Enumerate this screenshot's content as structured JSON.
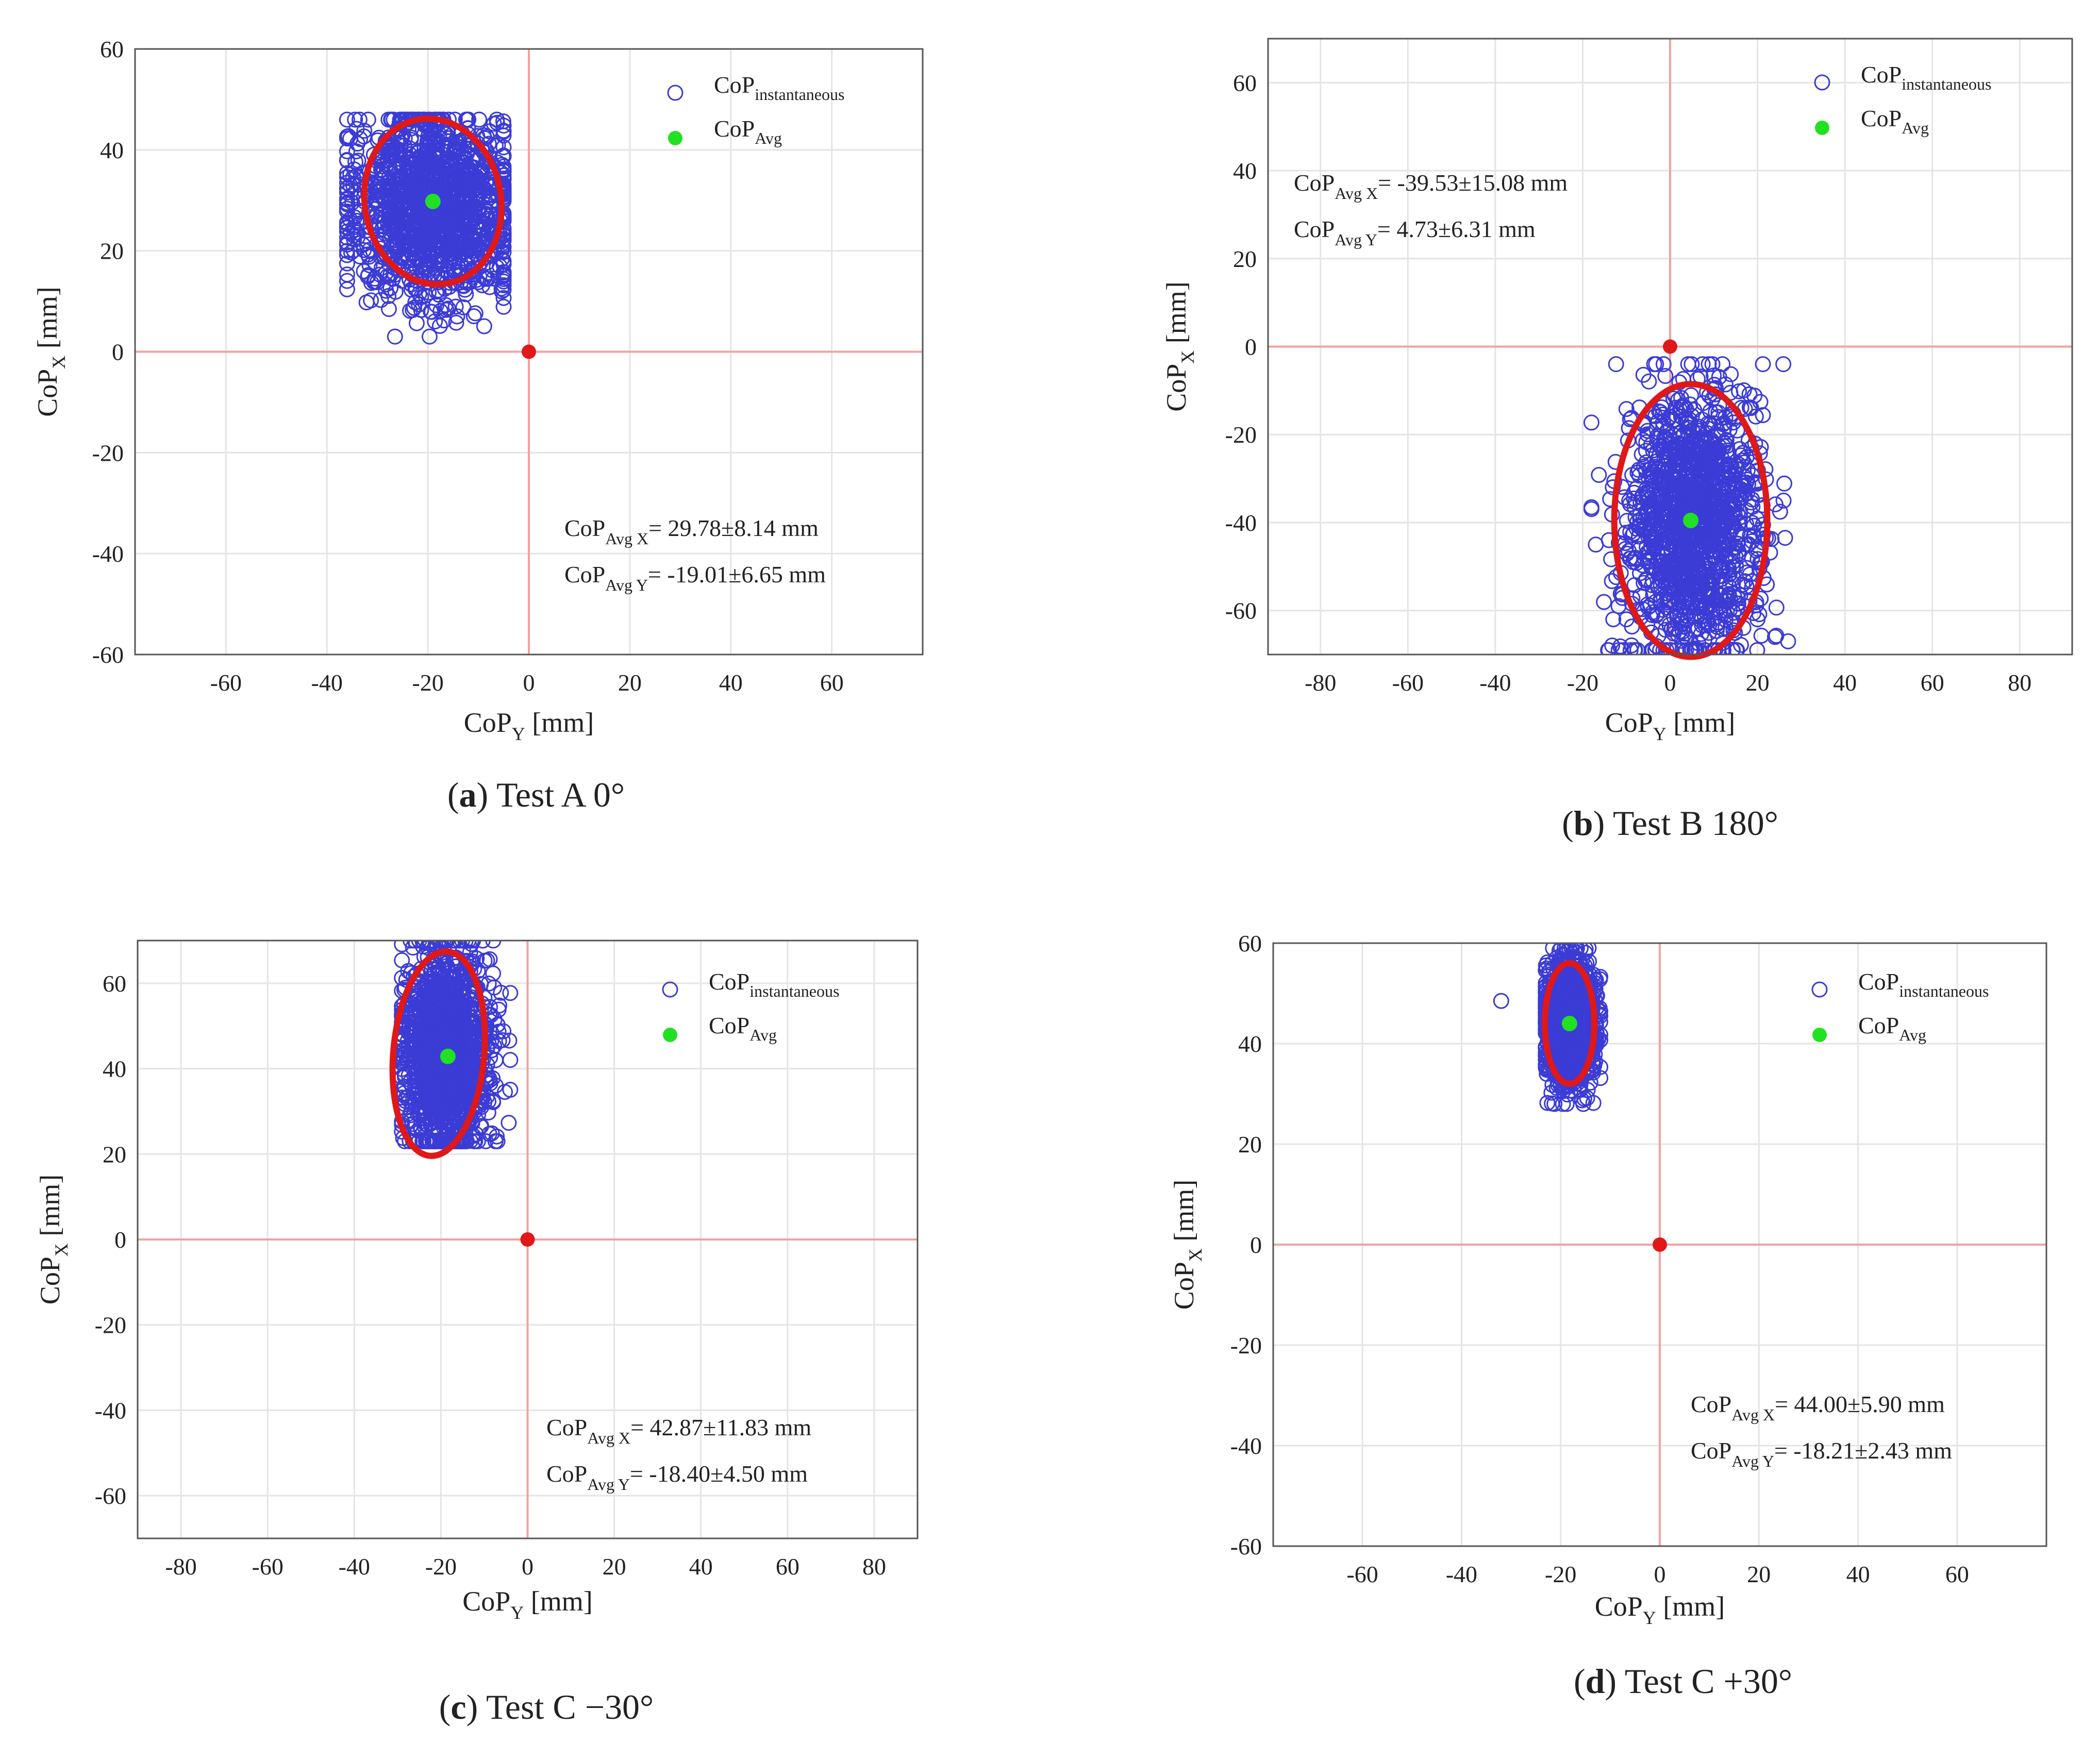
{
  "chart_data": [
    {
      "type": "scatter",
      "panel": "a",
      "caption_letter": "a",
      "caption_text": "Test A 0°",
      "xlabel_main": "CoP",
      "xlabel_sub": "Y",
      "xlabel_unit": " [mm]",
      "ylabel_main": "CoP",
      "ylabel_sub": "X",
      "ylabel_unit": " [mm]",
      "xlim": [
        -78,
        78
      ],
      "ylim": [
        -60,
        60
      ],
      "xticks": [
        -60,
        -40,
        -20,
        0,
        20,
        40,
        60
      ],
      "yticks": [
        -60,
        -40,
        -20,
        0,
        20,
        40,
        60
      ],
      "grid": true,
      "legend": {
        "placement": "top-right",
        "inst_main": "CoP",
        "inst_sub": "instantaneous",
        "avg_main": "CoP",
        "avg_sub": "Avg"
      },
      "stats_placement": "bottom-right",
      "stats": [
        {
          "main": "CoP",
          "sub": "Avg X",
          "value": "= 29.78±8.14 mm"
        },
        {
          "main": "CoP",
          "sub": "Avg Y",
          "value": "= -19.01±6.65 mm"
        }
      ],
      "avg_point": {
        "x": -19.01,
        "y": 29.78
      },
      "origin_point": {
        "x": 0,
        "y": 0
      },
      "ellipse": {
        "cx": -19.01,
        "cy": 29.78,
        "rx": 13.5,
        "ry": 16.5,
        "angle": -10
      },
      "cloud": {
        "x_center": -19,
        "x_spread": 8.5,
        "y_center": 29,
        "y_spread": 9,
        "x_min": -36,
        "x_max": -5,
        "y_min": 3,
        "y_max": 46
      },
      "outliers": [
        {
          "x": -7,
          "y": 14.5
        }
      ],
      "colors": {
        "instantaneous": "#3b3bd6",
        "avg": "#22e022",
        "ellipse": "#e01818",
        "origin": "#e01818",
        "crosshair": "#f4a0a0",
        "grid": "#e4e4e4"
      }
    },
    {
      "type": "scatter",
      "panel": "b",
      "caption_letter": "b",
      "caption_text": "Test B 180°",
      "xlabel_main": "CoP",
      "xlabel_sub": "Y",
      "xlabel_unit": " [mm]",
      "ylabel_main": "CoP",
      "ylabel_sub": "X",
      "ylabel_unit": " [mm]",
      "xlim": [
        -92,
        92
      ],
      "ylim": [
        -70,
        70
      ],
      "xticks": [
        -80,
        -60,
        -40,
        -20,
        0,
        20,
        40,
        60,
        80
      ],
      "yticks": [
        -60,
        -40,
        -20,
        0,
        20,
        40,
        60
      ],
      "grid": true,
      "legend": {
        "placement": "top-right",
        "inst_main": "CoP",
        "inst_sub": "instantaneous",
        "avg_main": "CoP",
        "avg_sub": "Avg"
      },
      "stats_placement": "top-left",
      "stats": [
        {
          "main": "CoP",
          "sub": "Avg X",
          "value": "= -39.53±15.08 mm"
        },
        {
          "main": "CoP",
          "sub": "Avg Y",
          "value": "= 4.73±6.31 mm"
        }
      ],
      "avg_point": {
        "x": 4.73,
        "y": -39.53
      },
      "origin_point": {
        "x": 0,
        "y": 0
      },
      "ellipse": {
        "cx": 4.73,
        "cy": -39.53,
        "rx": 17.5,
        "ry": 31,
        "angle": 0
      },
      "cloud": {
        "x_center": 5,
        "x_spread": 7.5,
        "y_center": -40,
        "y_spread": 15,
        "x_min": -18,
        "x_max": 27,
        "y_min": -69,
        "y_max": -4
      },
      "outliers": [
        {
          "x": -17,
          "y": -45
        },
        {
          "x": -14,
          "y": -44
        },
        {
          "x": 20,
          "y": -62
        },
        {
          "x": 24,
          "y": -66
        },
        {
          "x": 27,
          "y": -67
        },
        {
          "x": -13,
          "y": -62
        },
        {
          "x": -10,
          "y": -62
        }
      ],
      "colors": {
        "instantaneous": "#3b3bd6",
        "avg": "#22e022",
        "ellipse": "#e01818",
        "origin": "#e01818",
        "crosshair": "#f4a0a0",
        "grid": "#e4e4e4"
      }
    },
    {
      "type": "scatter",
      "panel": "c",
      "caption_letter": "c",
      "caption_text": "Test C −30°",
      "xlabel_main": "CoP",
      "xlabel_sub": "Y",
      "xlabel_unit": " [mm]",
      "ylabel_main": "CoP",
      "ylabel_sub": "X",
      "ylabel_unit": " [mm]",
      "xlim": [
        -90,
        90
      ],
      "ylim": [
        -70,
        70
      ],
      "xticks": [
        -80,
        -60,
        -40,
        -20,
        0,
        20,
        40,
        60,
        80
      ],
      "yticks": [
        -60,
        -40,
        -20,
        0,
        20,
        40,
        60
      ],
      "grid": true,
      "legend": {
        "placement": "top-right",
        "inst_main": "CoP",
        "inst_sub": "instantaneous",
        "avg_main": "CoP",
        "avg_sub": "Avg"
      },
      "stats_placement": "bottom-right",
      "stats": [
        {
          "main": "CoP",
          "sub": "Avg X",
          "value": "= 42.87±11.83 mm"
        },
        {
          "main": "CoP",
          "sub": "Avg Y",
          "value": "= -18.40±4.50 mm"
        }
      ],
      "avg_point": {
        "x": -18.4,
        "y": 42.87
      },
      "origin_point": {
        "x": 0,
        "y": 0
      },
      "ellipse": {
        "cx": -20.5,
        "cy": 43.5,
        "rx": 10.5,
        "ry": 24,
        "angle": 5
      },
      "cloud": {
        "x_center": -19,
        "x_spread": 5,
        "y_center": 43,
        "y_spread": 12,
        "x_min": -29,
        "x_max": -4,
        "y_min": 23,
        "y_max": 70
      },
      "outliers": [],
      "colors": {
        "instantaneous": "#3b3bd6",
        "avg": "#22e022",
        "ellipse": "#e01818",
        "origin": "#e01818",
        "crosshair": "#f4a0a0",
        "grid": "#e4e4e4"
      }
    },
    {
      "type": "scatter",
      "panel": "d",
      "caption_letter": "d",
      "caption_text": "Test C +30°",
      "xlabel_main": "CoP",
      "xlabel_sub": "Y",
      "xlabel_unit": " [mm]",
      "ylabel_main": "CoP",
      "ylabel_sub": "X",
      "ylabel_unit": " [mm]",
      "xlim": [
        -78,
        78
      ],
      "ylim": [
        -60,
        60
      ],
      "xticks": [
        -60,
        -40,
        -20,
        0,
        20,
        40,
        60
      ],
      "yticks": [
        -60,
        -40,
        -20,
        0,
        20,
        40,
        60
      ],
      "grid": true,
      "legend": {
        "placement": "top-right",
        "inst_main": "CoP",
        "inst_sub": "instantaneous",
        "avg_main": "CoP",
        "avg_sub": "Avg"
      },
      "stats_placement": "bottom-right",
      "stats": [
        {
          "main": "CoP",
          "sub": "Avg X",
          "value": "= 44.00±5.90 mm"
        },
        {
          "main": "CoP",
          "sub": "Avg Y",
          "value": "= -18.21±2.43 mm"
        }
      ],
      "avg_point": {
        "x": -18.21,
        "y": 44
      },
      "origin_point": {
        "x": 0,
        "y": 0
      },
      "ellipse": {
        "cx": -18.21,
        "cy": 44,
        "rx": 5,
        "ry": 12,
        "angle": 0
      },
      "cloud": {
        "x_center": -18,
        "x_spread": 2.6,
        "y_center": 44,
        "y_spread": 6,
        "x_min": -23,
        "x_max": -12,
        "y_min": 28,
        "y_max": 59
      },
      "outliers": [
        {
          "x": -32,
          "y": 48.5
        }
      ],
      "colors": {
        "instantaneous": "#3b3bd6",
        "avg": "#22e022",
        "ellipse": "#e01818",
        "origin": "#e01818",
        "crosshair": "#f4a0a0",
        "grid": "#e4e4e4"
      }
    }
  ]
}
